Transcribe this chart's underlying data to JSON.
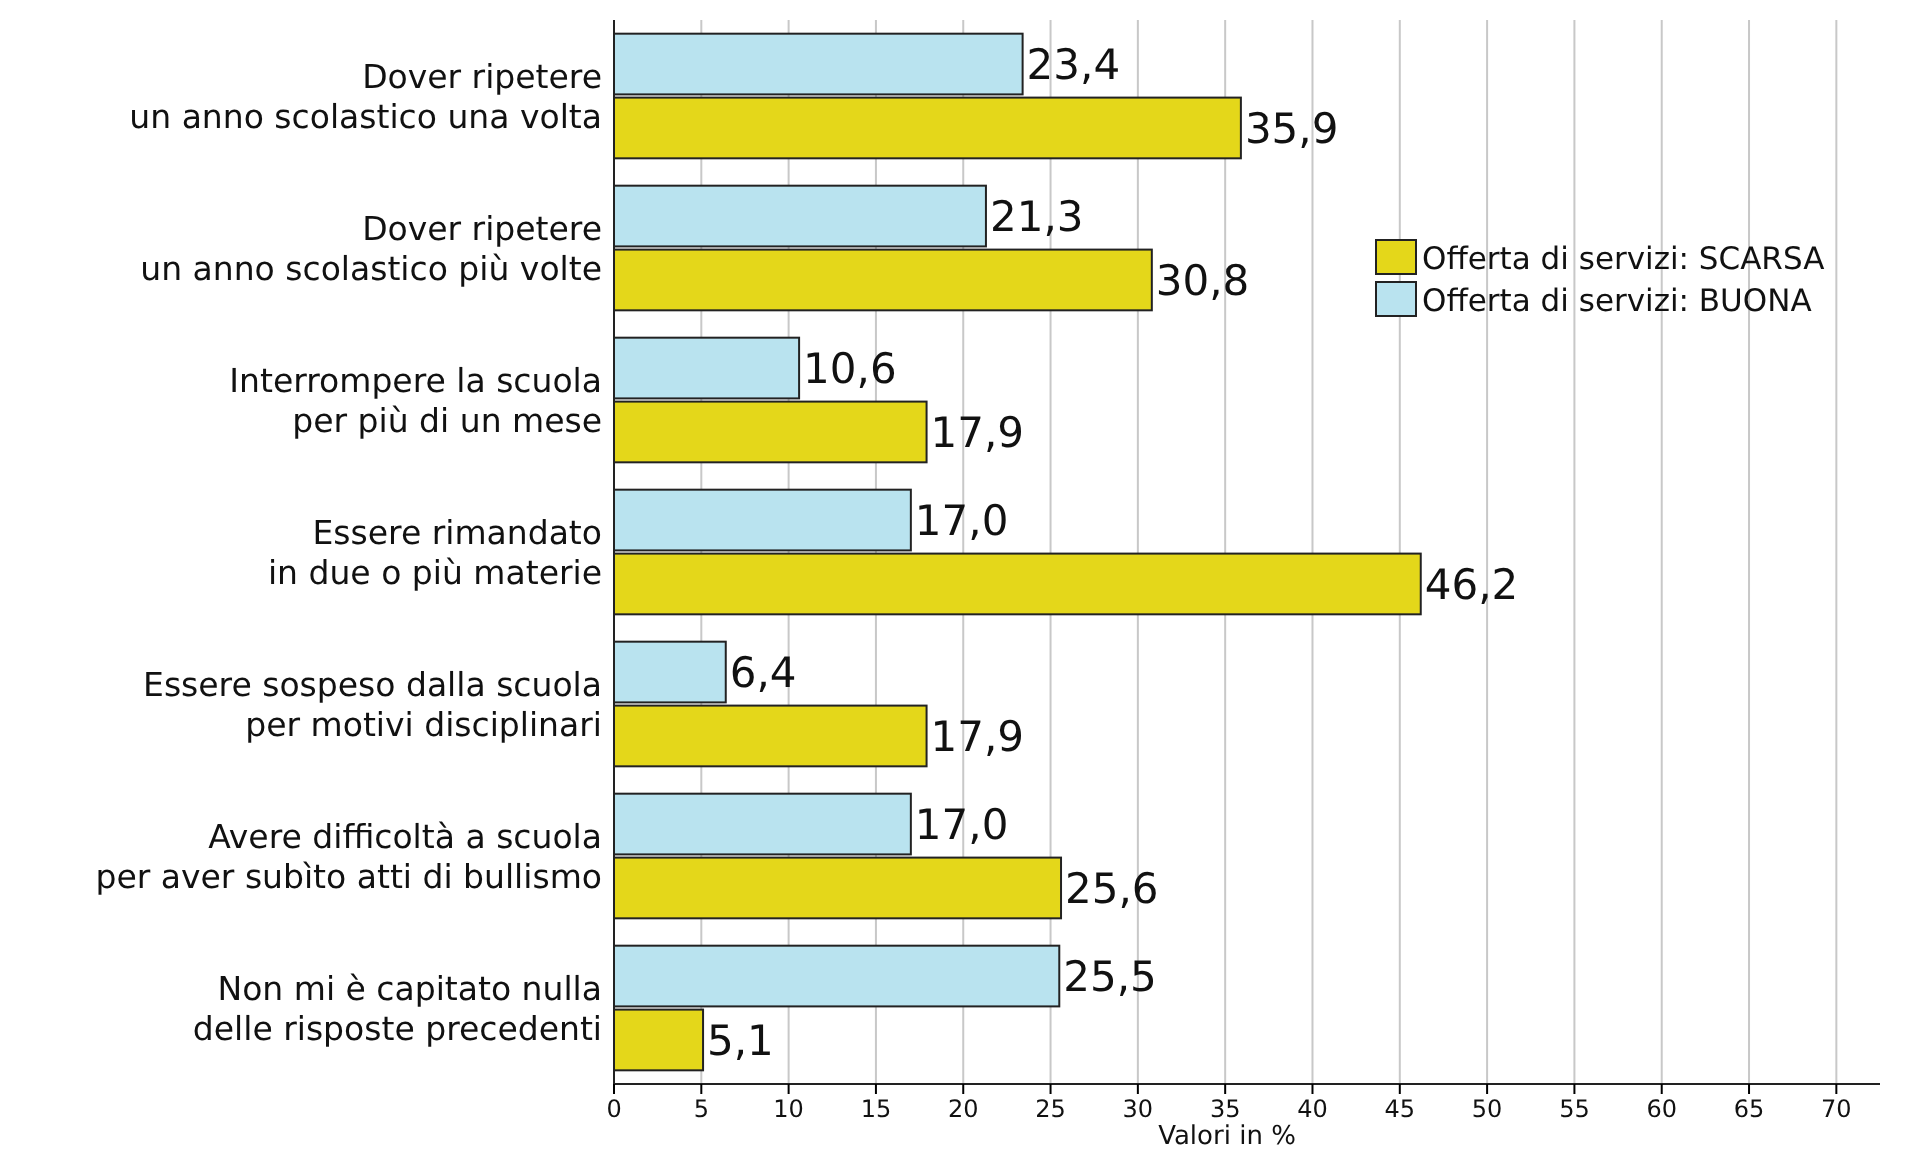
{
  "chart_data": {
    "type": "bar",
    "orientation": "horizontal",
    "xlabel": "Valori in %",
    "categories": [
      "Dover ripetere\nun anno scolastico una volta",
      "Dover ripetere\nun anno scolastico più volte",
      "Interrompere la scuola\nper più di un mese",
      "Essere rimandato\nin due o più materie",
      "Essere sospeso dalla scuola\nper motivi disciplinari",
      "Avere difficoltà a scuola\nper aver subìto atti di bullismo",
      "Non mi è capitato nulla\ndelle risposte precedenti"
    ],
    "series": [
      {
        "name": "Offerta di servizi: BUONA",
        "color": "#b9e3ef",
        "values": [
          23.4,
          21.3,
          10.6,
          17.0,
          6.4,
          17.0,
          25.5
        ],
        "value_labels": [
          "23,4",
          "21,3",
          "10,6",
          "17,0",
          "6,4",
          "17,0",
          "25,5"
        ]
      },
      {
        "name": "Offerta di servizi: SCARSA",
        "color": "#e4d71a",
        "values": [
          35.9,
          30.8,
          17.9,
          46.2,
          17.9,
          25.6,
          5.1
        ],
        "value_labels": [
          "35,9",
          "30,8",
          "17,9",
          "46,2",
          "17,9",
          "25,6",
          "5,1"
        ]
      }
    ],
    "xlim": [
      0,
      72.5
    ],
    "xticks": [
      0,
      5,
      10,
      15,
      20,
      25,
      30,
      35,
      40,
      45,
      50,
      55,
      60,
      65,
      70
    ],
    "grid": "x",
    "legend": "right"
  }
}
